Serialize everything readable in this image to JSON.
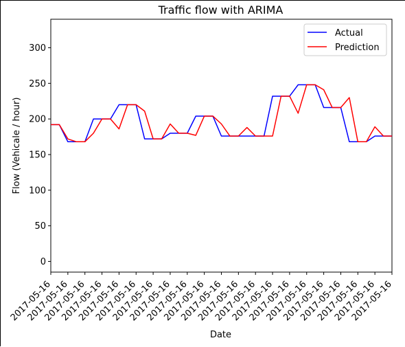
{
  "chart_data": {
    "type": "line",
    "title": "Traffic flow with ARIMA",
    "xlabel": "Date",
    "ylabel": "Flow (Vehicale / hour)",
    "ylim": [
      -15,
      340
    ],
    "yticks": [
      0,
      50,
      100,
      150,
      200,
      250,
      300
    ],
    "xtick_labels": [
      "2017-05-16",
      "2017-05-16",
      "2017-05-16",
      "2017-05-16",
      "2017-05-16",
      "2017-05-16",
      "2017-05-16",
      "2017-05-16",
      "2017-05-16",
      "2017-05-16",
      "2017-05-16",
      "2017-05-16",
      "2017-05-16",
      "2017-05-16",
      "2017-05-16",
      "2017-05-16",
      "2017-05-16",
      "2017-05-16",
      "2017-05-16",
      "2017-05-16",
      "2017-05-16"
    ],
    "legend_position": "upper right",
    "series": [
      {
        "name": "Actual",
        "color": "#0000ff",
        "values": [
          192,
          192,
          168,
          168,
          168,
          200,
          200,
          200,
          220,
          220,
          220,
          172,
          172,
          172,
          180,
          180,
          180,
          204,
          204,
          204,
          176,
          176,
          176,
          176,
          176,
          176,
          232,
          232,
          232,
          248,
          248,
          248,
          216,
          216,
          216,
          168,
          168,
          168,
          176,
          176,
          176
        ]
      },
      {
        "name": "Prediction",
        "color": "#ff0000",
        "values": [
          192,
          192,
          172,
          168,
          168,
          180,
          200,
          200,
          186,
          220,
          220,
          211,
          172,
          172,
          193,
          180,
          180,
          177,
          204,
          204,
          193,
          176,
          176,
          188,
          176,
          176,
          176,
          232,
          232,
          208,
          248,
          248,
          241,
          216,
          216,
          230,
          168,
          168,
          189,
          176,
          176
        ]
      }
    ]
  }
}
